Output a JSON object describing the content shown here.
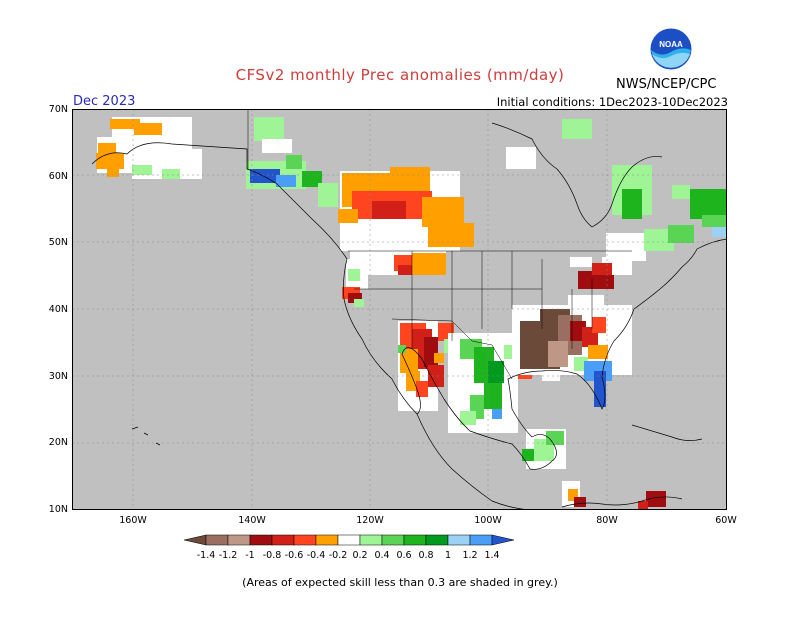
{
  "header": {
    "title": "CFSv2 monthly Prec anomalies (mm/day)",
    "month": "Dec 2023",
    "initial_conditions": "Initial conditions: 1Dec2023-10Dec2023",
    "agency": "NWS/NCEP/CPC",
    "logo_text": "NOAA"
  },
  "axes": {
    "lat_labels": [
      "70N",
      "60N",
      "50N",
      "40N",
      "30N",
      "20N",
      "10N"
    ],
    "lon_labels": [
      "160W",
      "140W",
      "120W",
      "100W",
      "80W",
      "60W"
    ]
  },
  "colorbar": {
    "labels": [
      "-1.4",
      "-1.2",
      "-1",
      "-0.8",
      "-0.6",
      "-0.4",
      "-0.2",
      "0.2",
      "0.4",
      "0.6",
      "0.8",
      "1",
      "1.2",
      "1.4"
    ],
    "colors": [
      "#6b4a3a",
      "#9a6f62",
      "#bf9787",
      "#a00d10",
      "#d02018",
      "#ff4520",
      "#ffa000",
      "#ffffff",
      "#9ff595",
      "#5ad454",
      "#1eb41e",
      "#009a1e",
      "#9ad1f5",
      "#4b9ef5",
      "#2255cc"
    ]
  },
  "footer": {
    "note": "(Areas of expected skill less than 0.3 are shaded in grey.)"
  },
  "map_colors": {
    "grey": "#c0c0c0",
    "ocean": "#ffffff"
  }
}
